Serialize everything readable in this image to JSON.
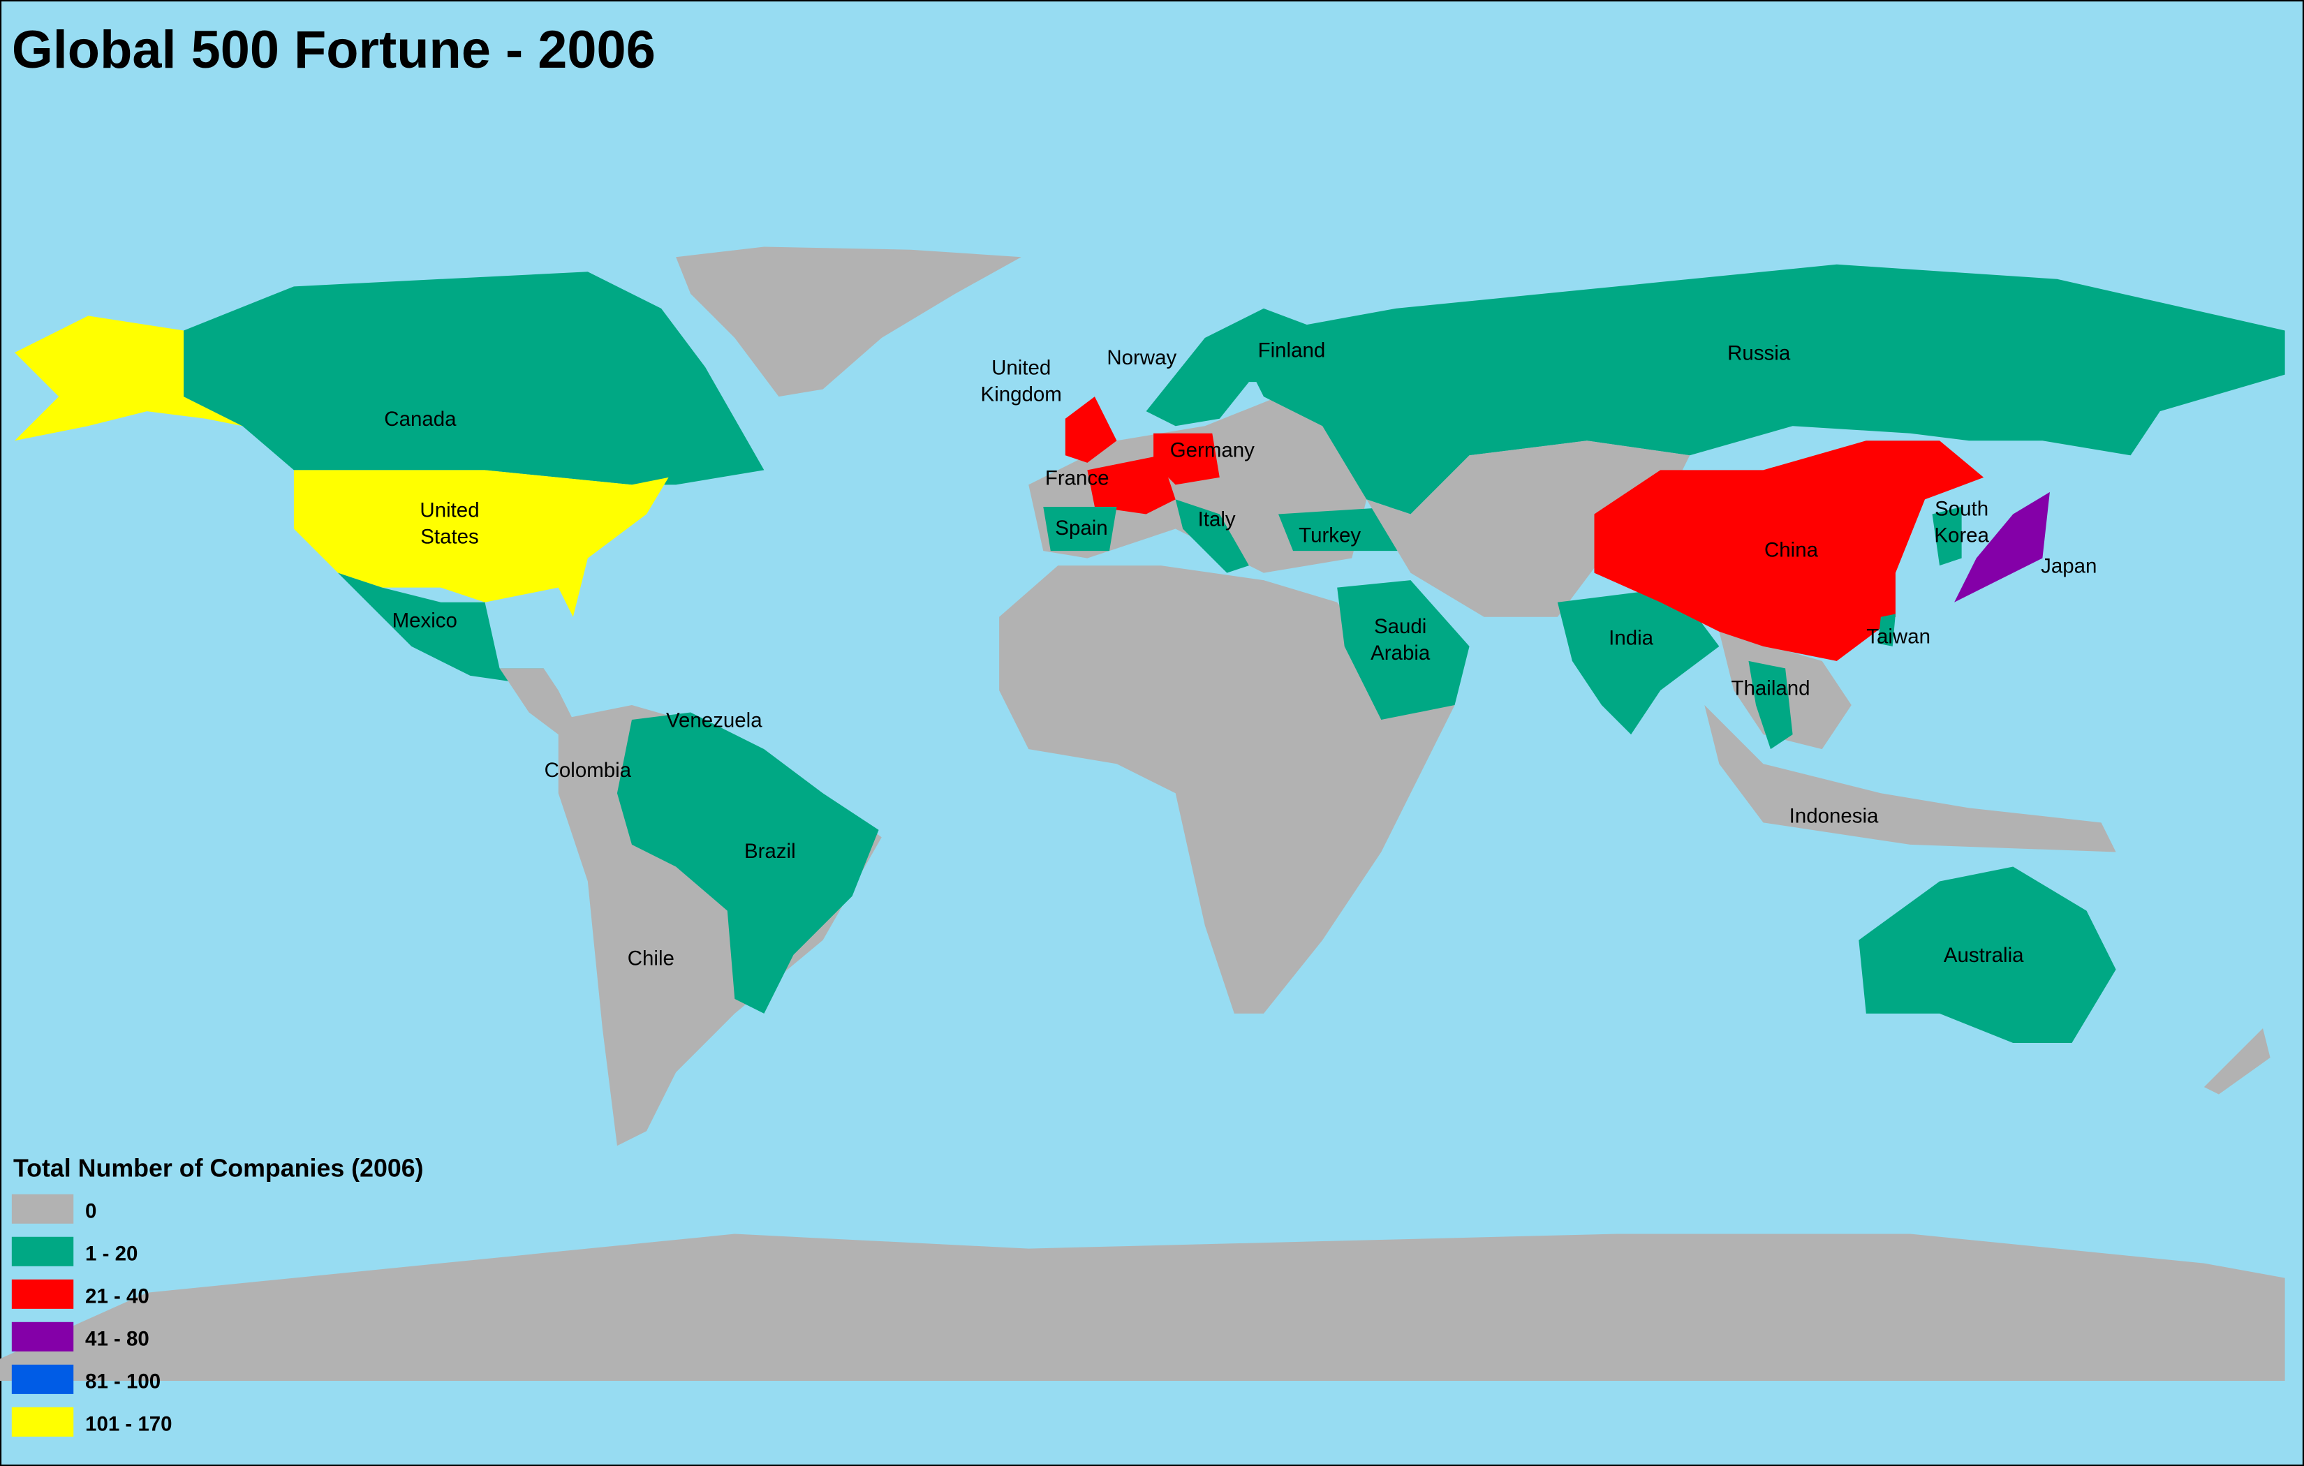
{
  "title": "Global 500 Fortune -  2006",
  "legend": {
    "title": "Total Number of Companies (2006)",
    "classes": [
      {
        "label": "0",
        "color": "#b2b2b2"
      },
      {
        "label": "1 - 20",
        "color": "#00a884"
      },
      {
        "label": "21 - 40",
        "color": "#ff0000"
      },
      {
        "label": "41 - 80",
        "color": "#8400a8"
      },
      {
        "label": "81 - 100",
        "color": "#005ce6"
      },
      {
        "label": "101 - 170",
        "color": "#ffff00"
      }
    ]
  },
  "countries": [
    "Canada",
    "United\nStates",
    "Mexico",
    "Venezuela",
    "Colombia",
    "Brazil",
    "Chile",
    "United\nKingdom",
    "Norway",
    "Finland",
    "Germany",
    "France",
    "Spain",
    "Italy",
    "Turkey",
    "Russia",
    "Saudi\nArabia",
    "India",
    "China",
    "South\nKorea",
    "Japan",
    "Taiwan",
    "Thailand",
    "Indonesia",
    "Australia"
  ]
}
